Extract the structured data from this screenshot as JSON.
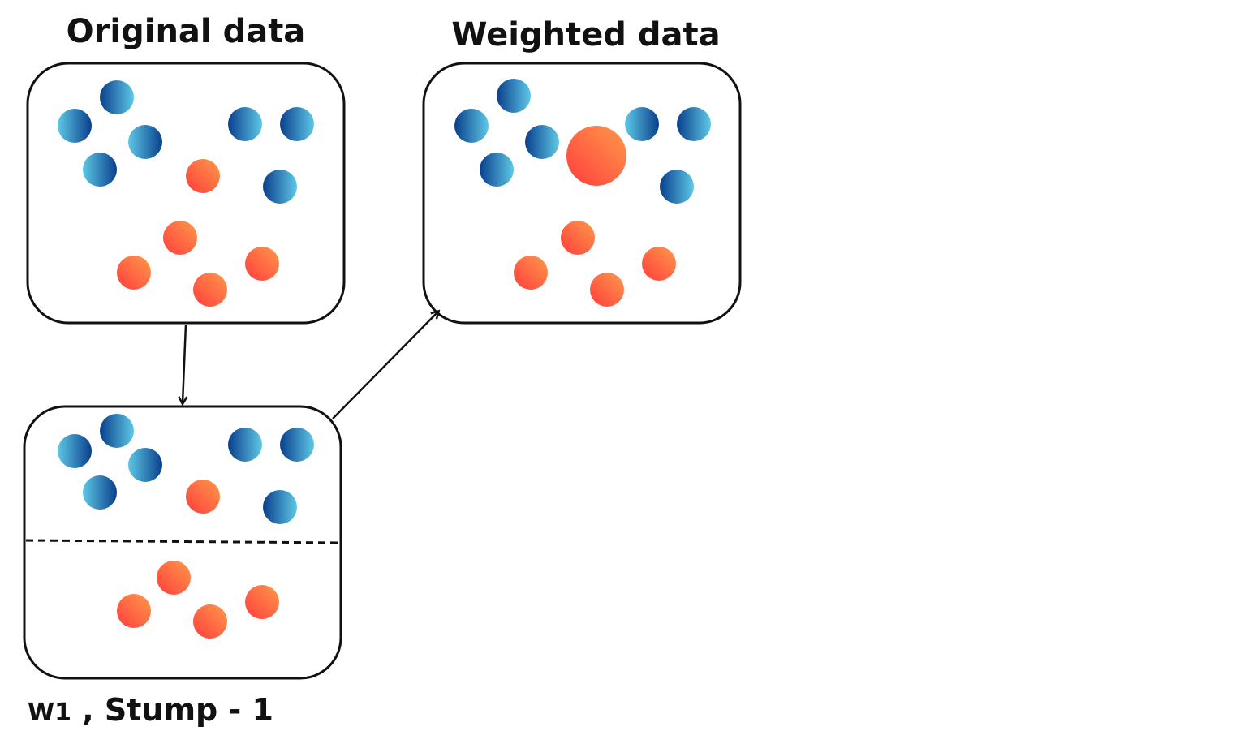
{
  "titles": {
    "original": "Original data",
    "weighted": "Weighted data"
  },
  "caption": {
    "weight": "W1",
    "separator": " , ",
    "stump": "Stump - 1"
  },
  "colors": {
    "blue_light": "#5ec8e6",
    "blue_dark": "#0a3f8c",
    "orange_light": "#ff9a4a",
    "orange_dark": "#ff3d3d",
    "stroke": "#111111"
  }
}
